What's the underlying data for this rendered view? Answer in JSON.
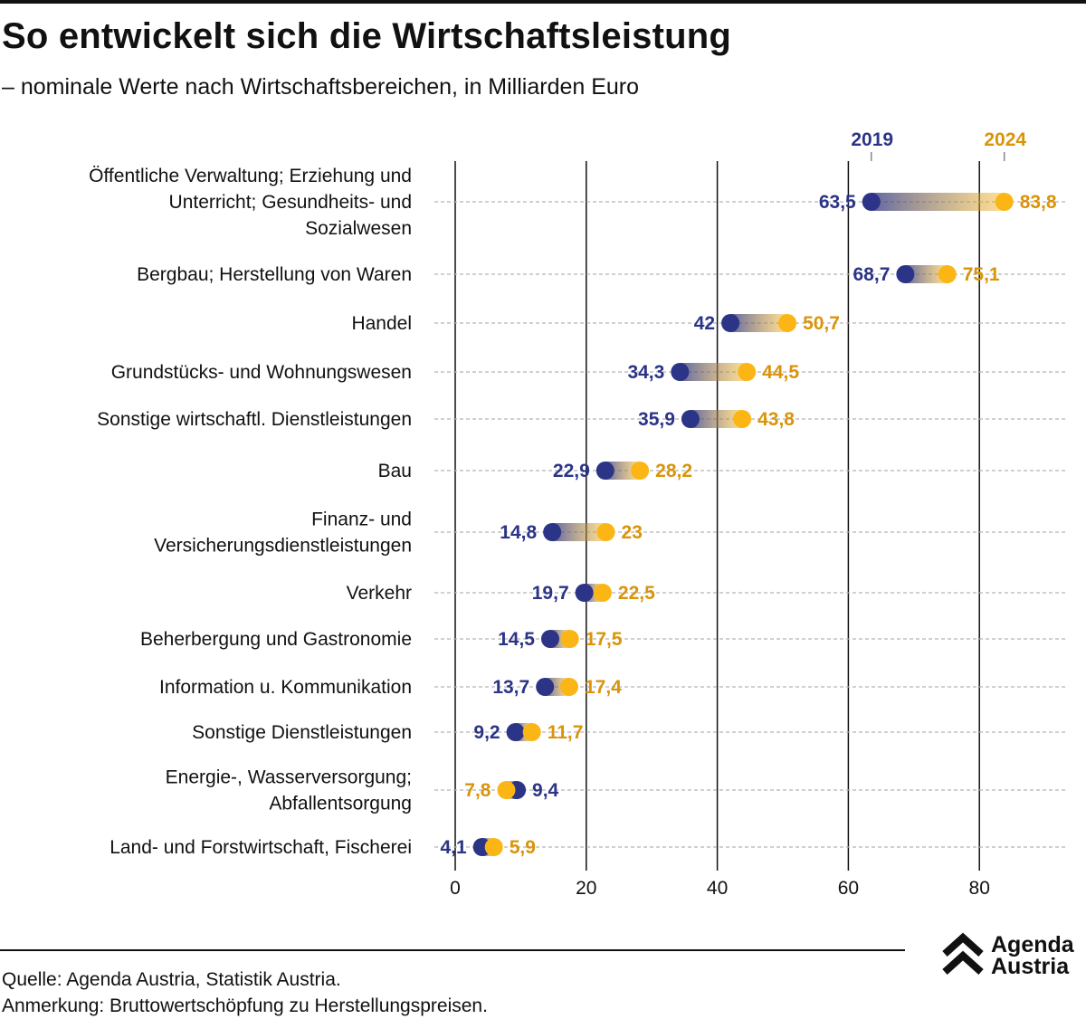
{
  "header": {
    "title": "So entwickelt sich die Wirtschaftsleistung",
    "subtitle": "– nominale Werte nach Wirtschaftsbereichen, in Milliarden Euro"
  },
  "footer": {
    "source": "Quelle: Agenda Austria, Statistik Austria.",
    "note": "Anmerkung: Bruttowertschöpfung zu Herstellungspreisen."
  },
  "logo": {
    "line1": "Agenda",
    "line2": "Austria",
    "icon": "double-chevron-up-icon"
  },
  "colors": {
    "y2019": "#2b3486",
    "y2024": "#fbb615",
    "y2024_label": "#d9940a",
    "gridline": "#111111",
    "rowline": "#b3b3b3"
  },
  "chart_data": {
    "type": "dumbbell",
    "title": "So entwickelt sich die Wirtschaftsleistung",
    "subtitle": "– nominale Werte nach Wirtschaftsbereichen, in Milliarden Euro",
    "series_names": [
      "2019",
      "2024"
    ],
    "legend_placement": "top-right",
    "xlim": [
      0,
      93
    ],
    "xticks": [
      0,
      20,
      40,
      60,
      80
    ],
    "xtick_labels": [
      "0",
      "20",
      "40",
      "60",
      "80"
    ],
    "grid": true,
    "rows": [
      {
        "label": [
          "Öffentliche Verwaltung; Erziehung und",
          "Unterricht; Gesundheits- und",
          "Sozialwesen"
        ],
        "v2019": 63.5,
        "v2024": 83.8,
        "l2019": "63,5",
        "l2024": "83,8"
      },
      {
        "label": [
          "Bergbau; Herstellung von Waren"
        ],
        "v2019": 68.7,
        "v2024": 75.1,
        "l2019": "68,7",
        "l2024": "75,1"
      },
      {
        "label": [
          "Handel"
        ],
        "v2019": 42,
        "v2024": 50.7,
        "l2019": "42",
        "l2024": "50,7"
      },
      {
        "label": [
          "Grundstücks- und Wohnungswesen"
        ],
        "v2019": 34.3,
        "v2024": 44.5,
        "l2019": "34,3",
        "l2024": "44,5"
      },
      {
        "label": [
          "Sonstige wirtschaftl. Dienstleistungen"
        ],
        "v2019": 35.9,
        "v2024": 43.8,
        "l2019": "35,9",
        "l2024": "43,8"
      },
      {
        "label": [
          "Bau"
        ],
        "v2019": 22.9,
        "v2024": 28.2,
        "l2019": "22,9",
        "l2024": "28,2"
      },
      {
        "label": [
          "Finanz- und",
          "Versicherungsdienstleistungen"
        ],
        "v2019": 14.8,
        "v2024": 23,
        "l2019": "14,8",
        "l2024": "23"
      },
      {
        "label": [
          "Verkehr"
        ],
        "v2019": 19.7,
        "v2024": 22.5,
        "l2019": "19,7",
        "l2024": "22,5"
      },
      {
        "label": [
          "Beherbergung und Gastronomie"
        ],
        "v2019": 14.5,
        "v2024": 17.5,
        "l2019": "14,5",
        "l2024": "17,5"
      },
      {
        "label": [
          "Information u. Kommunikation"
        ],
        "v2019": 13.7,
        "v2024": 17.4,
        "l2019": "13,7",
        "l2024": "17,4"
      },
      {
        "label": [
          "Sonstige Dienstleistungen"
        ],
        "v2019": 9.2,
        "v2024": 11.7,
        "l2019": "9,2",
        "l2024": "11,7"
      },
      {
        "label": [
          "Energie-, Wasserversorgung;",
          "Abfallentsorgung"
        ],
        "v2019": 9.4,
        "v2024": 7.8,
        "l2019": "9,4",
        "l2024": "7,8"
      },
      {
        "label": [
          "Land- und Forstwirtschaft, Fischerei"
        ],
        "v2019": 4.1,
        "v2024": 5.9,
        "l2019": "4,1",
        "l2024": "5,9"
      }
    ]
  }
}
